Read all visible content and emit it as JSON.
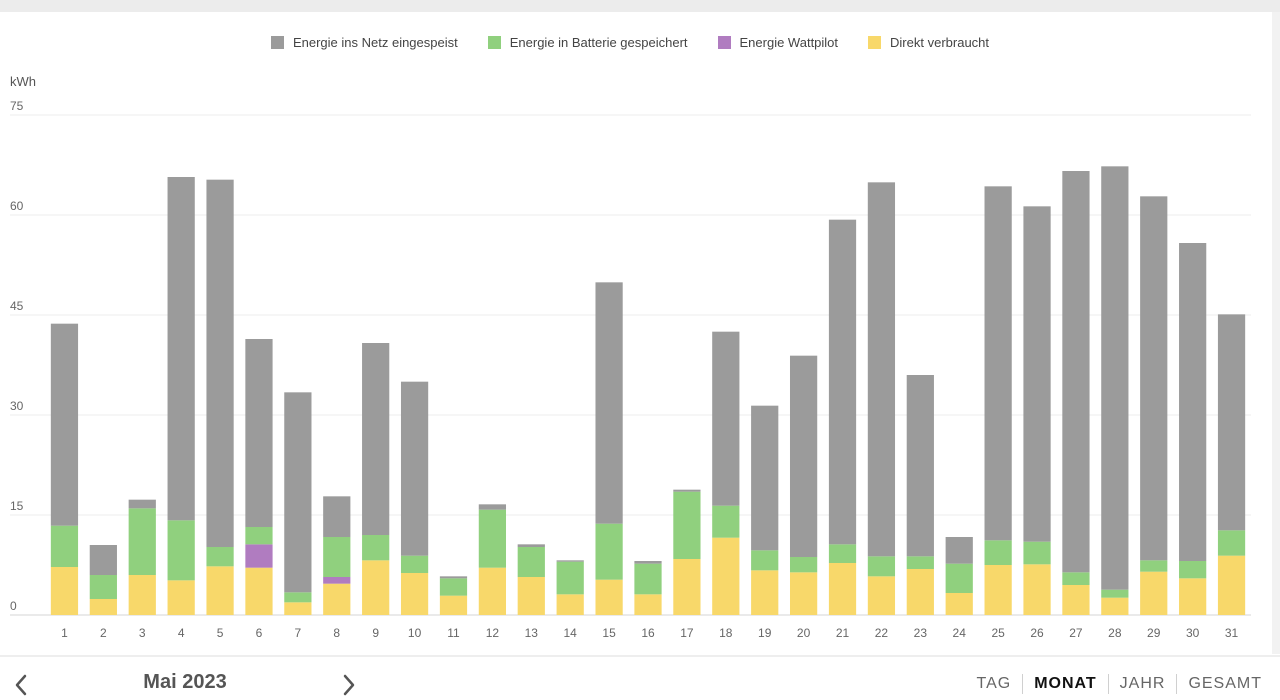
{
  "legend": [
    {
      "label": "Energie ins Netz eingespeist",
      "color": "#9b9b9b"
    },
    {
      "label": "Energie in Batterie gespeichert",
      "color": "#90d07e"
    },
    {
      "label": "Energie Wattpilot",
      "color": "#b07cc0"
    },
    {
      "label": "Direkt verbraucht",
      "color": "#f8d86a"
    }
  ],
  "chart_data": {
    "type": "bar",
    "stacked": true,
    "ylabel": "kWh",
    "ylim": [
      0,
      75
    ],
    "yticks": [
      "0",
      "15",
      "30",
      "45",
      "60",
      "75"
    ],
    "grid": true,
    "legend_position": "top",
    "categories": [
      "1",
      "2",
      "3",
      "4",
      "5",
      "6",
      "7",
      "8",
      "9",
      "10",
      "11",
      "12",
      "13",
      "14",
      "15",
      "16",
      "17",
      "18",
      "19",
      "20",
      "21",
      "22",
      "23",
      "24",
      "25",
      "26",
      "27",
      "28",
      "29",
      "30",
      "31"
    ],
    "series": [
      {
        "name": "Direkt verbraucht",
        "color": "#f8d86a",
        "values": [
          7.2,
          2.4,
          6,
          5.2,
          7.3,
          7.1,
          1.9,
          4.7,
          8.2,
          6.3,
          2.9,
          7.1,
          5.7,
          3.1,
          5.3,
          3.1,
          8.4,
          11.6,
          6.7,
          6.4,
          7.8,
          5.8,
          6.9,
          3.3,
          7.5,
          7.6,
          4.5,
          2.6,
          6.5,
          5.5,
          8.9
        ]
      },
      {
        "name": "Energie Wattpilot",
        "color": "#b07cc0",
        "values": [
          0,
          0,
          0,
          0,
          0,
          3.5,
          0,
          1,
          0,
          0,
          0,
          0,
          0,
          0,
          0,
          0,
          0,
          0,
          0,
          0,
          0,
          0,
          0,
          0,
          0,
          0,
          0,
          0,
          0,
          0,
          0
        ]
      },
      {
        "name": "Energie in Batterie gespeichert",
        "color": "#90d07e",
        "values": [
          6.2,
          3.6,
          10,
          9,
          2.9,
          2.6,
          1.5,
          6,
          3.8,
          2.6,
          2.6,
          8.7,
          4.5,
          4.9,
          8.4,
          4.6,
          10.1,
          4.8,
          3,
          2.3,
          2.8,
          3,
          1.9,
          4.4,
          3.7,
          3.4,
          1.9,
          1.2,
          1.7,
          2.6,
          3.8
        ]
      },
      {
        "name": "Energie ins Netz eingespeist",
        "color": "#9b9b9b",
        "values": [
          30.3,
          4.5,
          1.3,
          51.5,
          55.1,
          28.2,
          30,
          6.1,
          28.8,
          26.1,
          0.3,
          0.8,
          0.4,
          0.2,
          36.2,
          0.4,
          0.3,
          26.1,
          21.7,
          30.2,
          48.7,
          56.1,
          27.2,
          4,
          53.1,
          50.3,
          60.2,
          63.5,
          54.6,
          47.7,
          32.4
        ]
      }
    ]
  },
  "navigation": {
    "prev_icon": "chevron-left-icon",
    "period": "Mai 2023",
    "next_icon": "chevron-right-icon"
  },
  "range_tabs": [
    {
      "label": "TAG",
      "active": false
    },
    {
      "label": "MONAT",
      "active": true
    },
    {
      "label": "JAHR",
      "active": false
    },
    {
      "label": "GESAMT",
      "active": false
    }
  ]
}
